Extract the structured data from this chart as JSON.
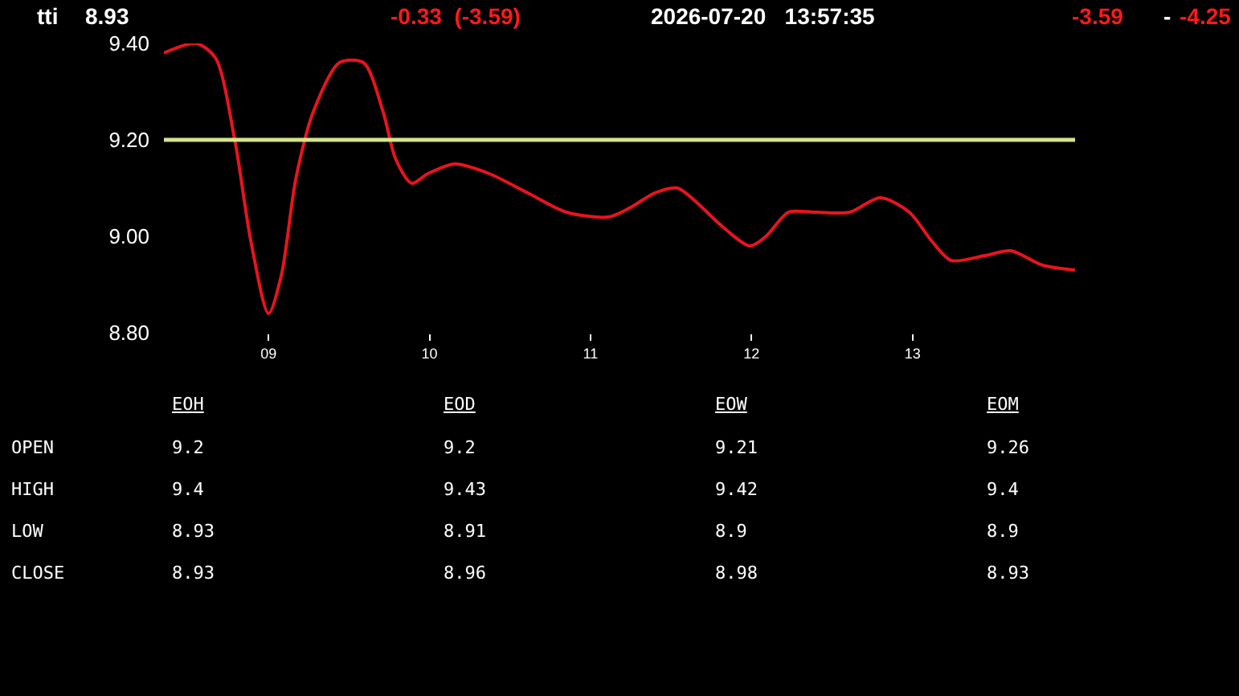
{
  "chart_data": [
    {
      "type": "line",
      "title": "tti",
      "annotations": [
        "8.93",
        "-0.33  (-3.59)",
        "2026-07-20   13:57:35",
        "-3.59",
        "-",
        "-4.25"
      ],
      "series": [
        {
          "color": "#e8141e",
          "x": [
            8.35,
            8.55,
            8.67,
            8.79,
            8.89,
            9.0,
            9.08,
            9.17,
            9.28,
            9.44,
            9.59,
            9.71,
            9.79,
            9.89,
            9.99,
            10.16,
            10.37,
            10.61,
            10.85,
            11.11,
            11.25,
            11.4,
            11.54,
            11.66,
            11.82,
            11.99,
            12.09,
            12.23,
            12.39,
            12.61,
            12.8,
            12.98,
            13.12,
            13.24,
            13.45,
            13.61,
            13.81,
            14.01
          ],
          "values": [
            9.38,
            9.4,
            9.37,
            9.2,
            8.99,
            8.84,
            8.92,
            9.12,
            9.26,
            9.36,
            9.36,
            9.26,
            9.16,
            9.11,
            9.13,
            9.15,
            9.13,
            9.09,
            9.05,
            9.04,
            9.06,
            9.09,
            9.1,
            9.07,
            9.02,
            8.98,
            9.0,
            9.05,
            9.05,
            9.05,
            9.08,
            9.05,
            8.99,
            8.95,
            8.96,
            8.97,
            8.94,
            8.93
          ]
        }
      ],
      "ref_lines": [
        {
          "axis": "y",
          "value": 9.2,
          "color": "#d4e68a"
        }
      ],
      "xlim": [
        8.35,
        14.01
      ],
      "xticks": [
        {
          "value": 9,
          "label": "09"
        },
        {
          "value": 10,
          "label": "10"
        },
        {
          "value": 11,
          "label": "11"
        },
        {
          "value": 12,
          "label": "12"
        },
        {
          "value": 13,
          "label": "13"
        }
      ],
      "ylim": [
        8.8,
        9.4
      ],
      "yticks": [
        {
          "value": 8.8,
          "label": "8.80"
        },
        {
          "value": 9.0,
          "label": "9.00"
        },
        {
          "value": 9.2,
          "label": "9.20"
        },
        {
          "value": 9.4,
          "label": "9.40"
        }
      ],
      "grid": false,
      "marker": "none",
      "line_style": "solid"
    },
    {
      "type": "other",
      "annotations": [
        "EOH",
        "EOD",
        "EOW",
        "EOM",
        "OPEN",
        "9.2",
        "9.2",
        "9.21",
        "9.26",
        "HIGH",
        "9.4",
        "9.43",
        "9.42",
        "9.4",
        "LOW",
        "8.93",
        "8.91",
        "8.9",
        "8.9",
        "CLOSE",
        "8.93",
        "8.96",
        "8.98",
        "8.93"
      ]
    }
  ]
}
